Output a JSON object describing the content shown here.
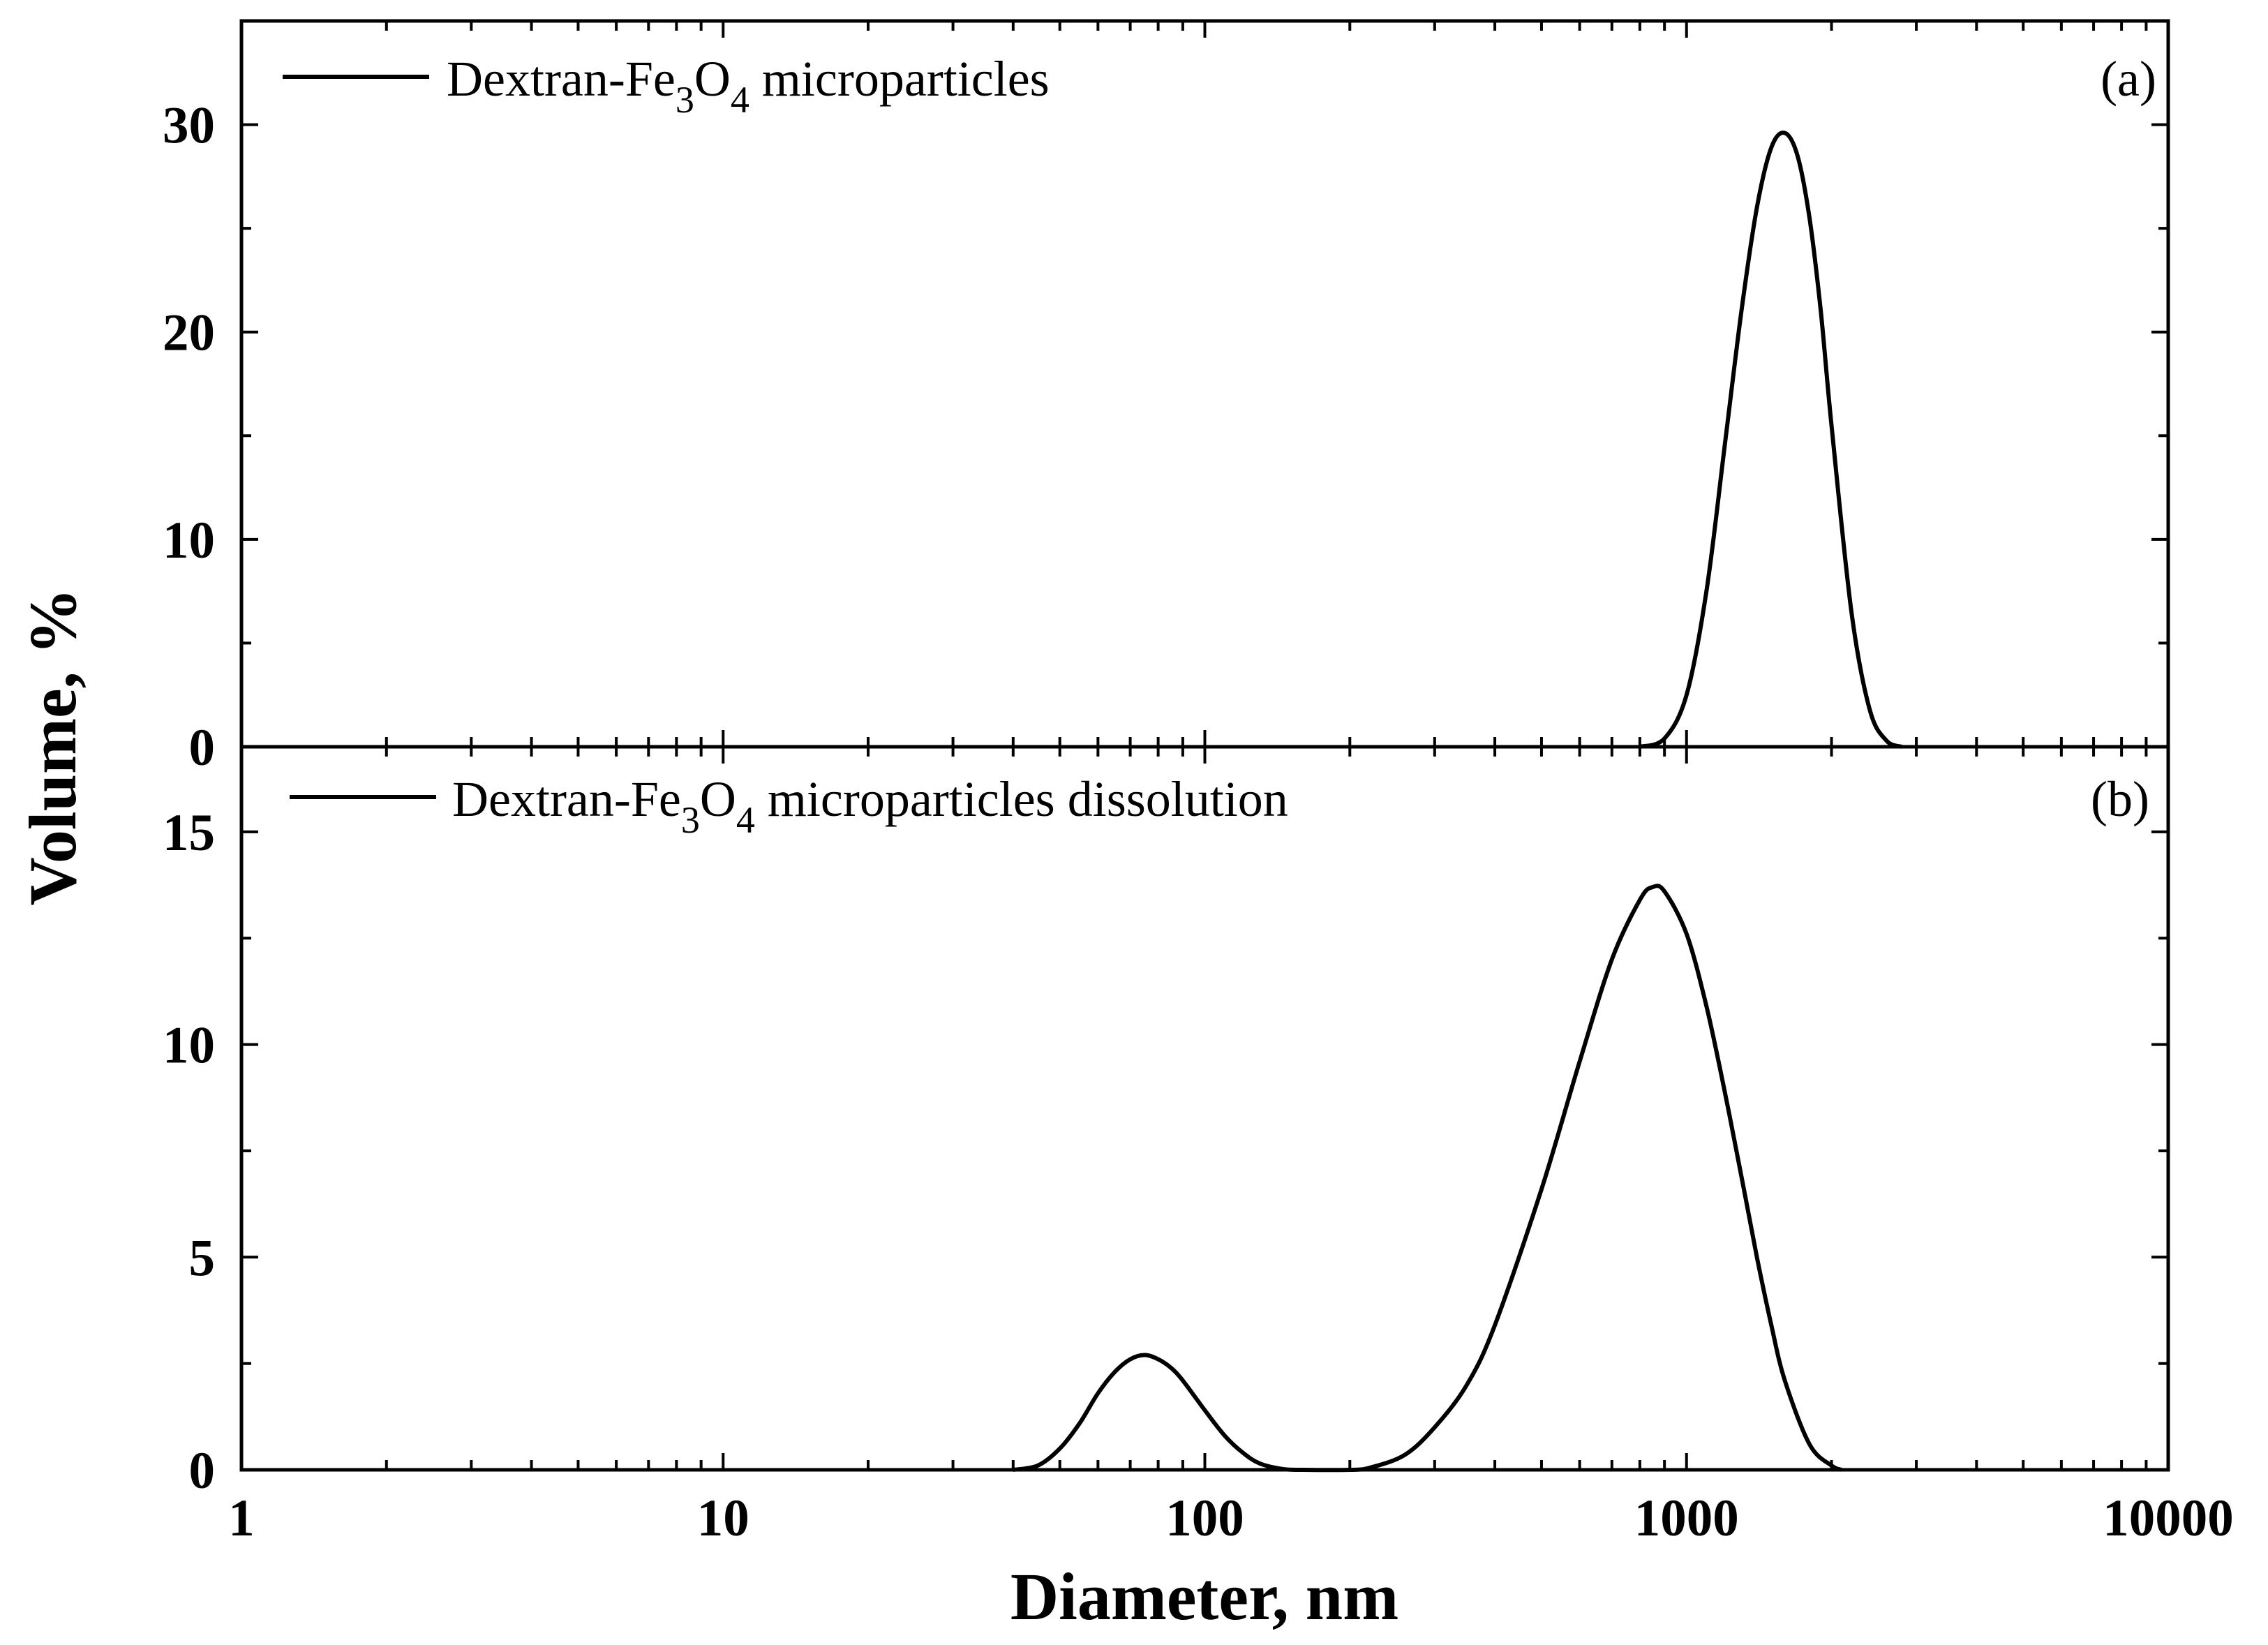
{
  "chart_data": [
    {
      "type": "line",
      "panel": "a",
      "panel_label": "(a)",
      "xscale": "log",
      "xlim": [
        1,
        10000
      ],
      "ylim": [
        0,
        35
      ],
      "yticks": [
        0,
        10,
        20,
        30
      ],
      "ytick_labels": [
        "0",
        "10",
        "20",
        "30"
      ],
      "legend_position": "top-left",
      "series": [
        {
          "name": "Dextran-Fe3O4 microparticles",
          "label_parts": [
            "Dextran-Fe",
            "3",
            "O",
            "4",
            " microparticles"
          ],
          "x": [
            800,
            900,
            1000,
            1100,
            1200,
            1300,
            1400,
            1500,
            1600,
            1700,
            1800,
            1900,
            2000,
            2200,
            2400,
            2600,
            2800
          ],
          "y": [
            0,
            0.4,
            2.5,
            7.5,
            14.5,
            21.0,
            26.0,
            28.9,
            29.6,
            28.5,
            25.5,
            21.0,
            15.5,
            6.5,
            1.8,
            0.3,
            0
          ]
        }
      ]
    },
    {
      "type": "line",
      "panel": "b",
      "panel_label": "(b)",
      "xscale": "log",
      "xlim": [
        1,
        10000
      ],
      "ylim": [
        0,
        17
      ],
      "yticks": [
        0,
        5,
        10,
        15
      ],
      "ytick_labels": [
        "0",
        "5",
        "10",
        "15"
      ],
      "legend_position": "top-left",
      "series": [
        {
          "name": "Dextran-Fe3O4 microparticles dissolution",
          "label_parts": [
            "Dextran-Fe",
            "3",
            "O",
            "4",
            " microparticles dissolution"
          ],
          "x": [
            40,
            45,
            50,
            55,
            60,
            65,
            70,
            75,
            80,
            85,
            90,
            100,
            110,
            120,
            130,
            145,
            160,
            200,
            220,
            260,
            300,
            350,
            400,
            500,
            600,
            700,
            800,
            850,
            900,
            1000,
            1100,
            1200,
            1300,
            1400,
            1500,
            1600,
            1800,
            2000,
            2100
          ],
          "y": [
            0,
            0.1,
            0.5,
            1.1,
            1.8,
            2.3,
            2.6,
            2.7,
            2.6,
            2.4,
            2.1,
            1.4,
            0.8,
            0.4,
            0.15,
            0.02,
            0,
            0,
            0.05,
            0.35,
            1.0,
            2.0,
            3.4,
            6.6,
            9.6,
            12.0,
            13.4,
            13.7,
            13.6,
            12.6,
            10.9,
            8.9,
            6.9,
            5.0,
            3.4,
            2.1,
            0.6,
            0.1,
            0
          ]
        }
      ]
    }
  ],
  "x_axis": {
    "title": "Diameter, nm",
    "tick_values": [
      1,
      10,
      100,
      1000,
      10000
    ],
    "tick_labels": [
      "1",
      "10",
      "100",
      "1000",
      "10000"
    ]
  },
  "y_axis": {
    "title": "Volume, %"
  }
}
